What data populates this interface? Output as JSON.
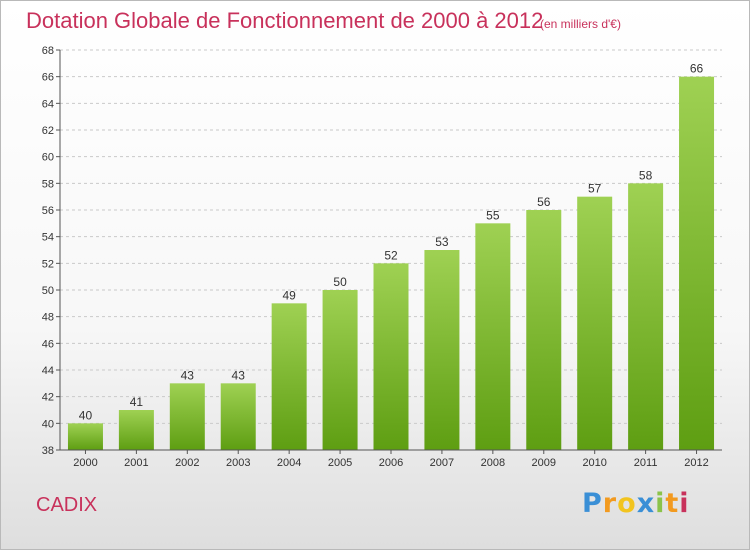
{
  "header": {
    "title": "Dotation Globale de Fonctionnement de 2000 à 2012",
    "unit": "(en milliers d'€)"
  },
  "footer": {
    "place": "CADIX",
    "logo": "Proxiti"
  },
  "chart_data": {
    "type": "bar",
    "title": "Dotation Globale de Fonctionnement de 2000 à 2012",
    "subtitle": "(en milliers d'€)",
    "categories": [
      "2000",
      "2001",
      "2002",
      "2003",
      "2004",
      "2005",
      "2006",
      "2007",
      "2008",
      "2009",
      "2010",
      "2011",
      "2012"
    ],
    "values": [
      40,
      41,
      43,
      43,
      49,
      50,
      52,
      53,
      55,
      56,
      57,
      58,
      66
    ],
    "xlabel": "",
    "ylabel": "",
    "ylim": [
      38,
      68
    ],
    "yticks": [
      38,
      40,
      42,
      44,
      46,
      48,
      50,
      52,
      54,
      56,
      58,
      60,
      62,
      64,
      66,
      68
    ],
    "grid": true,
    "colors": {
      "bar_top": "#9fd153",
      "bar_bottom": "#5e9e12",
      "grid": "#c9c9c9",
      "accent_text": "#c8315b"
    }
  }
}
